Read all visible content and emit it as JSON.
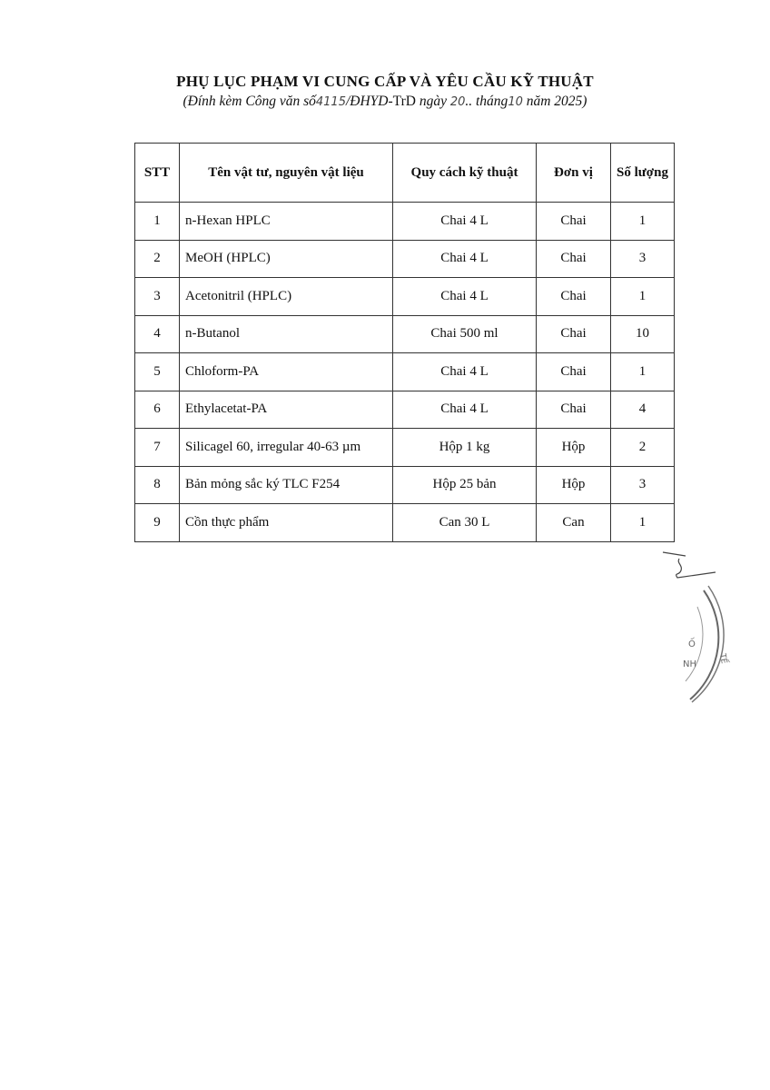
{
  "title": "PHỤ LỤC PHẠM VI CUNG CẤP VÀ YÊU CẦU KỸ THUẬT",
  "subtitle": {
    "pre": "(Đính kèm Công văn số",
    "num": "4115",
    "mid1": "/ĐHYD-",
    "code": "TrD",
    "mid2": " ngày ",
    "day": "20",
    "mid3": ".. tháng",
    "month": "10",
    "post": " năm 2025)"
  },
  "table": {
    "headers": [
      "STT",
      "Tên vật tư, nguyên vật liệu",
      "Quy cách kỹ thuật",
      "Đơn vị",
      "Số lượng"
    ],
    "rows": [
      [
        "1",
        "n-Hexan HPLC",
        "Chai 4 L",
        "Chai",
        "1"
      ],
      [
        "2",
        "MeOH (HPLC)",
        "Chai 4 L",
        "Chai",
        "3"
      ],
      [
        "3",
        "Acetonitril (HPLC)",
        "Chai 4 L",
        "Chai",
        "1"
      ],
      [
        "4",
        "n-Butanol",
        "Chai 500 ml",
        "Chai",
        "10"
      ],
      [
        "5",
        "Chloform-PA",
        "Chai 4 L",
        "Chai",
        "1"
      ],
      [
        "6",
        "Ethylacetat-PA",
        "Chai 4 L",
        "Chai",
        "4"
      ],
      [
        "7",
        "Silicagel 60, irregular 40-63 µm",
        "Hộp 1 kg",
        "Hộp",
        "2"
      ],
      [
        "8",
        "Bản mỏng sắc ký TLC F254",
        "Hộp 25 bản",
        "Hộp",
        "3"
      ],
      [
        "9",
        "Cồn thực phẩm",
        "Can 30 L",
        "Can",
        "1"
      ]
    ]
  },
  "stamp": {
    "text": "Ố NH TẾ"
  }
}
